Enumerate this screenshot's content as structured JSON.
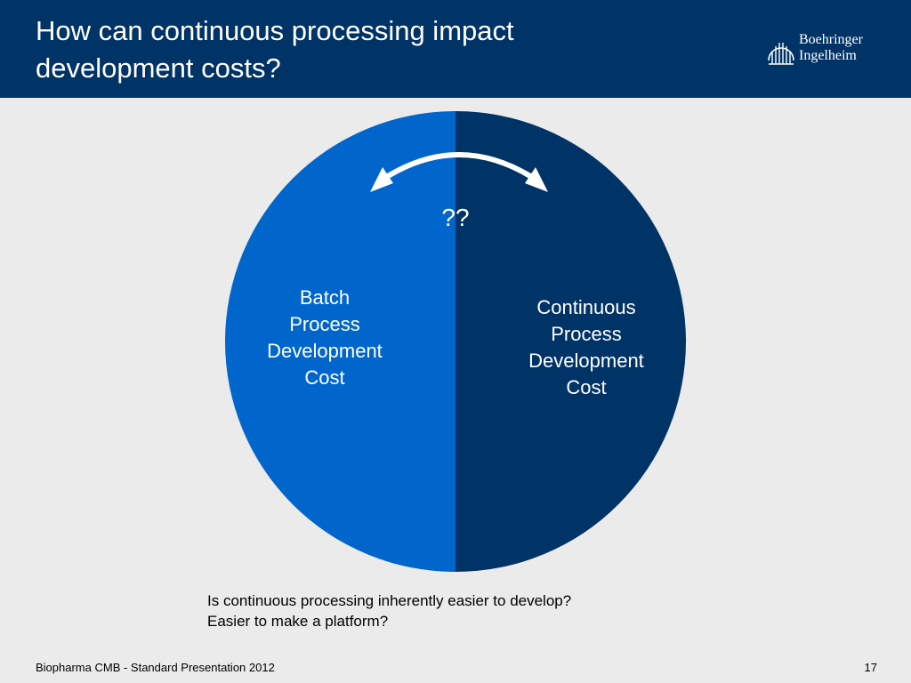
{
  "header": {
    "title_line1": "How can continuous processing impact",
    "title_line2": "development costs?",
    "logo": {
      "line1": "Boehringer",
      "line2": "Ingelheim"
    }
  },
  "diagram": {
    "left_segment": {
      "line1": "Batch",
      "line2": "Process",
      "line3": "Development",
      "line4": "Cost",
      "color": "#0066cc",
      "share": 0.5
    },
    "right_segment": {
      "line1": "Continuous",
      "line2": "Process",
      "line3": "Development",
      "line4": "Cost",
      "color": "#003366",
      "share": 0.5
    },
    "question_marks": "??",
    "arrow": "double-headed-curved-arrow-icon"
  },
  "caption": {
    "line1": "Is continuous processing inherently easier to develop?",
    "line2": "Easier to make a platform?"
  },
  "footer": {
    "left": "Biopharma CMB - Standard Presentation 2012",
    "page_number": "17"
  },
  "colors": {
    "header_bg": "#003366",
    "page_bg": "#ebebeb"
  }
}
